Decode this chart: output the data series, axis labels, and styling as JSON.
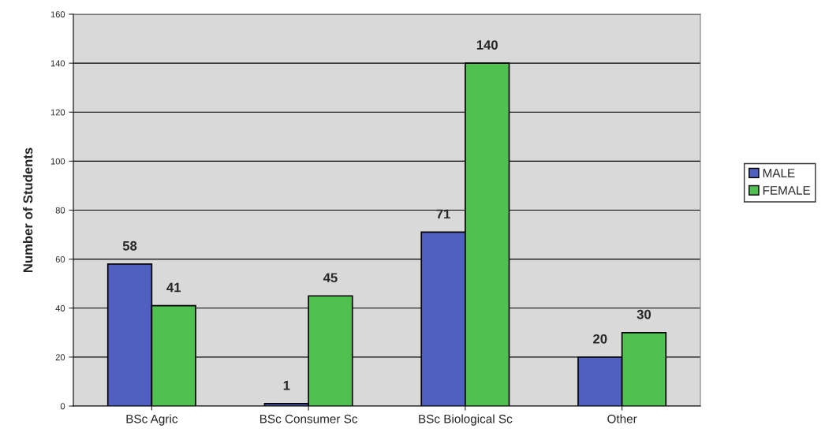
{
  "chart_data": {
    "type": "bar",
    "ylabel": "Number of Students",
    "categories": [
      "BSc Agric",
      "BSc Consumer Sc",
      "BSc Biological Sc",
      "Other"
    ],
    "series": [
      {
        "name": "MALE",
        "color": "#5060c0",
        "values": [
          58,
          1,
          71,
          20
        ]
      },
      {
        "name": "FEMALE",
        "color": "#50c050",
        "values": [
          41,
          45,
          140,
          30
        ]
      }
    ],
    "ylim": [
      0,
      160
    ],
    "yticks": [
      0,
      20,
      40,
      60,
      80,
      100,
      120,
      140,
      160
    ],
    "grid": "y",
    "legend": "right",
    "data_labels": true
  }
}
